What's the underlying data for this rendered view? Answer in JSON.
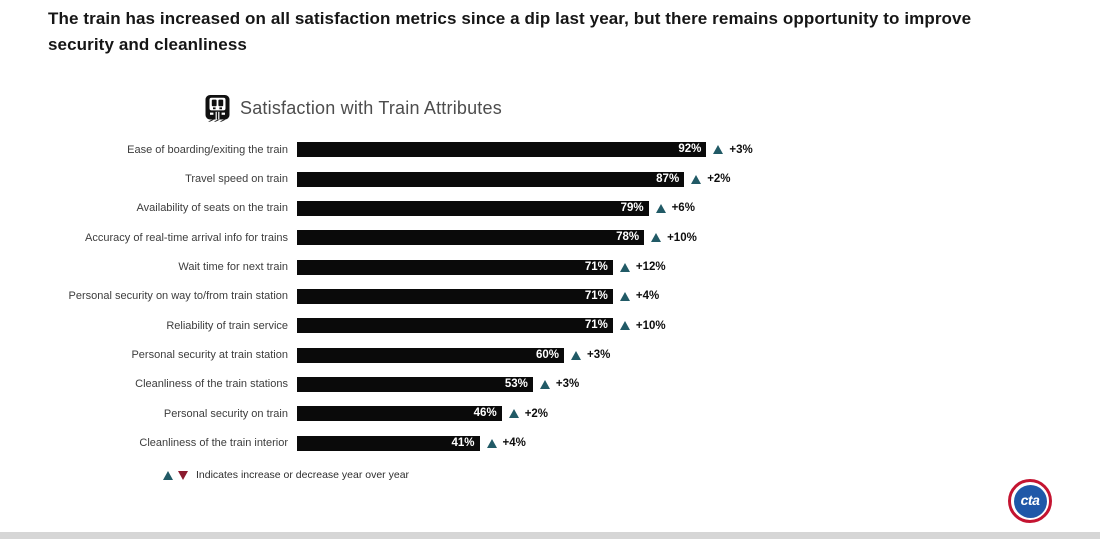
{
  "slide": {
    "title": "The train has increased on all satisfaction metrics since a dip last year, but there remains opportunity to improve security and cleanliness"
  },
  "chart": {
    "icon": "train-icon",
    "title": "Satisfaction with Train Attributes",
    "legend": {
      "up_symbol": "▲",
      "down_symbol": "▼",
      "text": "Indicates increase or decrease year over year"
    },
    "colors": {
      "bar": "#0a0a0a",
      "increase_triangle": "#215a66",
      "decrease_triangle": "#8b1a2e"
    }
  },
  "chart_data": {
    "type": "bar",
    "orientation": "horizontal",
    "title": "Satisfaction with Train Attributes",
    "categories": [
      "Ease of boarding/exiting the train",
      "Travel speed on train",
      "Availability of seats on the train",
      "Accuracy of real-time arrival info for trains",
      "Wait time for next train",
      "Personal security on  way to/from  train station",
      "Reliability of train service",
      "Personal security at  train station",
      "Cleanliness of the train stations",
      "Personal security on  train",
      "Cleanliness of the train interior"
    ],
    "values": [
      92,
      87,
      79,
      78,
      71,
      71,
      71,
      60,
      53,
      46,
      41
    ],
    "value_labels": [
      "92%",
      "87%",
      "79%",
      "78%",
      "71%",
      "71%",
      "71%",
      "60%",
      "53%",
      "46%",
      "41%"
    ],
    "changes_yoy": [
      "+3%",
      "+2%",
      "+6%",
      "+10%",
      "+12%",
      "+4%",
      "+10%",
      "+3%",
      "+3%",
      "+2%",
      "+4%"
    ],
    "change_direction": [
      "up",
      "up",
      "up",
      "up",
      "up",
      "up",
      "up",
      "up",
      "up",
      "up",
      "up"
    ],
    "xlim": [
      0,
      100
    ],
    "xlabel": "",
    "ylabel": "",
    "grid": false,
    "legend_position": "bottom-left",
    "annotation": "Indicates increase or decrease year over year"
  },
  "footer": {
    "logo_text": "cta"
  }
}
